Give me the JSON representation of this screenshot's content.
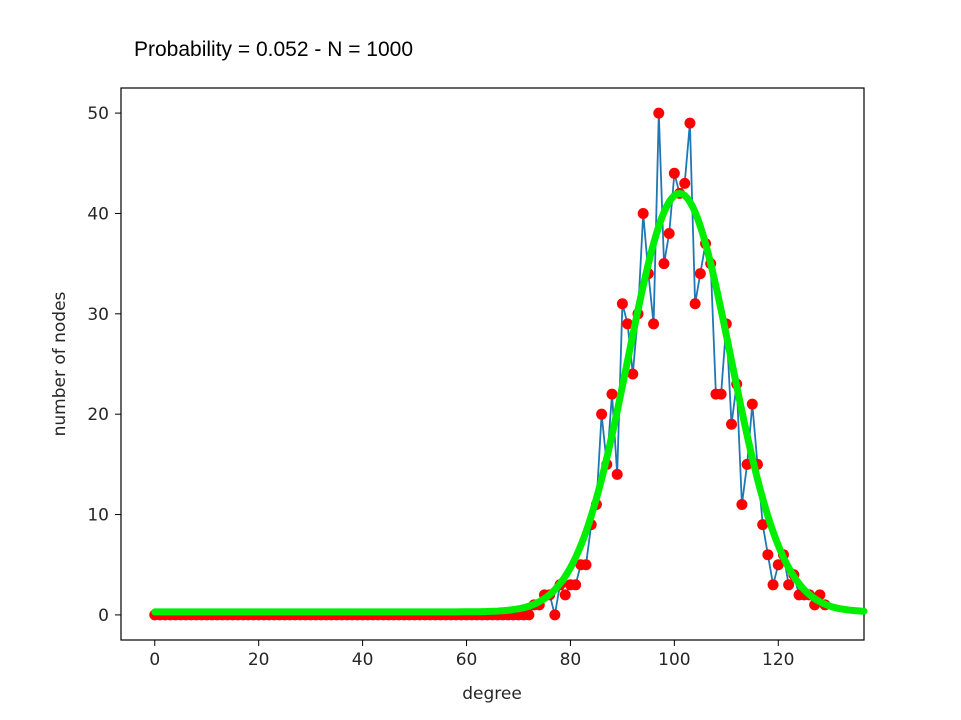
{
  "chart_data": {
    "type": "line",
    "title": "Probability = 0.052  - N = 1000",
    "xlabel": "degree",
    "ylabel": "number of nodes",
    "xlim": [
      -6.5,
      136.5
    ],
    "ylim": [
      -2.5,
      52.5
    ],
    "xticks": [
      0,
      20,
      40,
      60,
      80,
      100,
      120
    ],
    "yticks": [
      0,
      10,
      20,
      30,
      40,
      50
    ],
    "grid": false,
    "series": [
      {
        "kind": "line-with-markers",
        "color": "#1f77b4",
        "marker_color": "#ff0000",
        "x": [
          0,
          1,
          2,
          3,
          4,
          5,
          6,
          7,
          8,
          9,
          10,
          11,
          12,
          13,
          14,
          15,
          16,
          17,
          18,
          19,
          20,
          21,
          22,
          23,
          24,
          25,
          26,
          27,
          28,
          29,
          30,
          31,
          32,
          33,
          34,
          35,
          36,
          37,
          38,
          39,
          40,
          41,
          42,
          43,
          44,
          45,
          46,
          47,
          48,
          49,
          50,
          51,
          52,
          53,
          54,
          55,
          56,
          57,
          58,
          59,
          60,
          61,
          62,
          63,
          64,
          65,
          66,
          67,
          68,
          69,
          70,
          71,
          72,
          73,
          74,
          75,
          76,
          77,
          78,
          79,
          80,
          81,
          82,
          83,
          84,
          85,
          86,
          87,
          88,
          89,
          90,
          91,
          92,
          93,
          94,
          95,
          96,
          97,
          98,
          99,
          100,
          101,
          102,
          103,
          104,
          105,
          106,
          107,
          108,
          109,
          110,
          111,
          112,
          113,
          114,
          115,
          116,
          117,
          118,
          119,
          120,
          121,
          122,
          123,
          124,
          125,
          126,
          127,
          128,
          129
        ],
        "y": [
          0,
          0,
          0,
          0,
          0,
          0,
          0,
          0,
          0,
          0,
          0,
          0,
          0,
          0,
          0,
          0,
          0,
          0,
          0,
          0,
          0,
          0,
          0,
          0,
          0,
          0,
          0,
          0,
          0,
          0,
          0,
          0,
          0,
          0,
          0,
          0,
          0,
          0,
          0,
          0,
          0,
          0,
          0,
          0,
          0,
          0,
          0,
          0,
          0,
          0,
          0,
          0,
          0,
          0,
          0,
          0,
          0,
          0,
          0,
          0,
          0,
          0,
          0,
          0,
          0,
          0,
          0,
          0,
          0,
          0,
          0,
          0,
          0,
          1,
          1,
          2,
          2,
          0,
          3,
          2,
          3,
          3,
          5,
          5,
          9,
          11,
          20,
          15,
          22,
          14,
          31,
          29,
          24,
          30,
          40,
          34,
          29,
          50,
          35,
          38,
          44,
          42,
          43,
          49,
          31,
          34,
          37,
          35,
          22,
          22,
          29,
          19,
          23,
          11,
          15,
          21,
          15,
          9,
          6,
          3,
          5,
          6,
          3,
          4,
          2,
          2,
          2,
          1,
          2,
          1
        ]
      },
      {
        "kind": "fit-curve",
        "color": "#00ee00",
        "mean": 101,
        "std": 9.9,
        "peak": 42,
        "baseline": 0.3,
        "x_range": [
          0,
          136.5
        ]
      }
    ]
  }
}
